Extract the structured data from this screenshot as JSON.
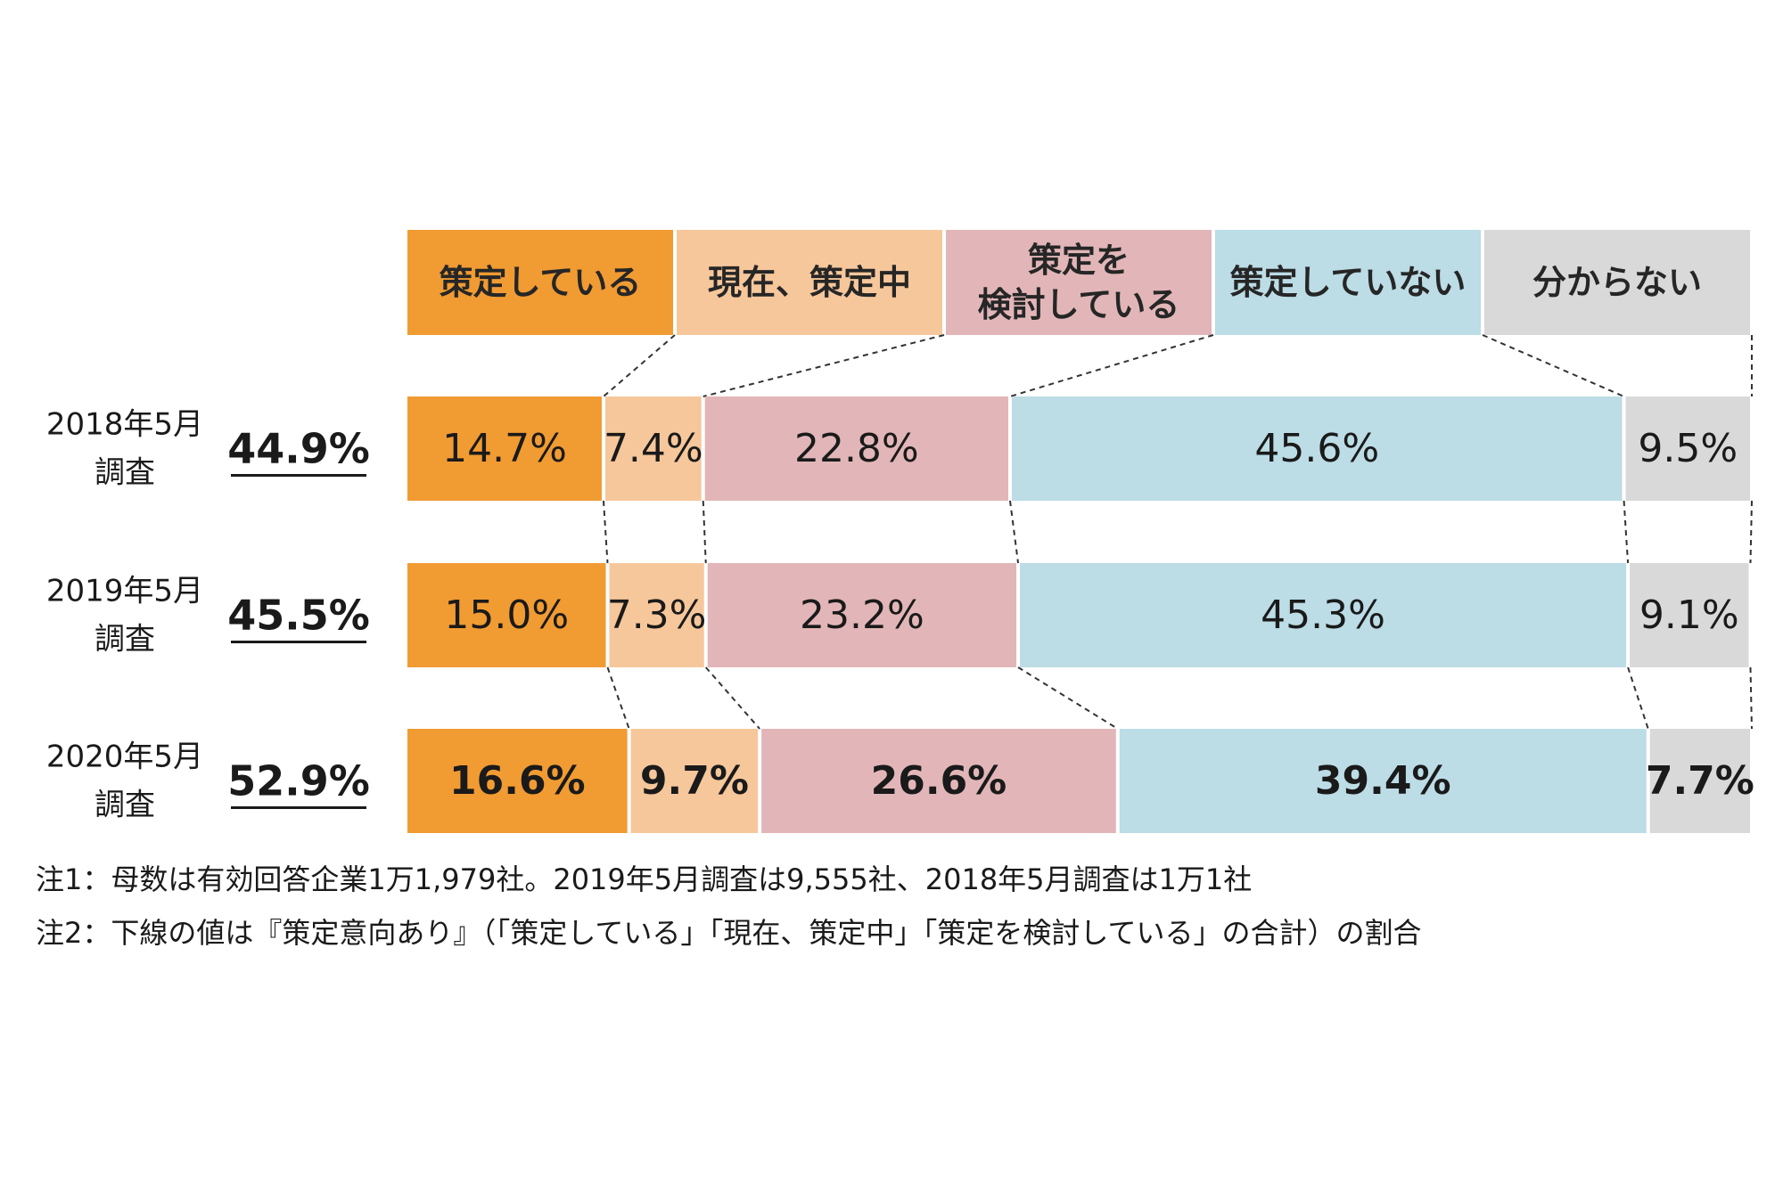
{
  "chart_data": {
    "type": "bar",
    "orientation": "horizontal",
    "stacked": true,
    "normalized": true,
    "categories": [
      "2018年5月\n調査",
      "2019年5月\n調査",
      "2020年5月\n調査"
    ],
    "category_lines": [
      [
        "2018年5月",
        "調査"
      ],
      [
        "2019年5月",
        "調査"
      ],
      [
        "2020年5月",
        "調査"
      ]
    ],
    "totals": [
      "44.9%",
      "45.5%",
      "52.9%"
    ],
    "total_note": "下線の値は『策定意向あり』",
    "series": [
      {
        "name": "策定している",
        "lines": [
          "策定している"
        ],
        "color": "#f19b33",
        "values": [
          14.7,
          15.0,
          16.6
        ]
      },
      {
        "name": "現在、策定中",
        "lines": [
          "現在、策定中"
        ],
        "color": "#f6c79b",
        "values": [
          7.4,
          7.3,
          9.7
        ]
      },
      {
        "name": "策定を\n検討している",
        "lines": [
          "策定を",
          "検討している"
        ],
        "color": "#e2b6b8",
        "values": [
          22.8,
          23.2,
          26.6
        ]
      },
      {
        "name": "策定していない",
        "lines": [
          "策定していない"
        ],
        "color": "#bcdce6",
        "values": [
          45.6,
          45.3,
          39.4
        ]
      },
      {
        "name": "分からない",
        "lines": [
          "分からない"
        ],
        "color": "#d9d9d9",
        "values": [
          9.5,
          9.1,
          7.7
        ]
      }
    ],
    "bold_rows": [
      2
    ],
    "unit": "%",
    "legend": "top"
  },
  "notes": [
    "注1：母数は有効回答企業1万1,979社。2019年5月調査は9,555社、2018年5月調査は1万1社",
    "注2：下線の値は『策定意向あり』（「策定している」「現在、策定中」「策定を検討している」の合計）の割合"
  ]
}
